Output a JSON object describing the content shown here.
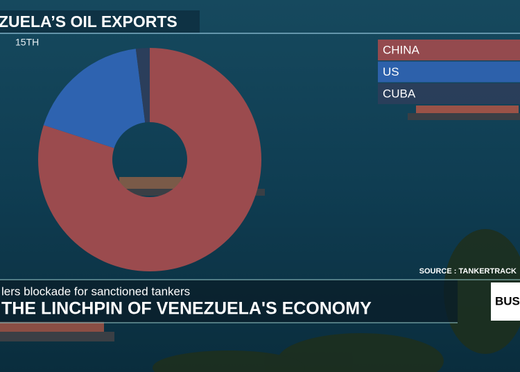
{
  "chart_data": {
    "type": "pie",
    "title": "ZUELA’S OIL EXPORTS",
    "subtitle": "15TH",
    "categories": [
      "CHINA",
      "US",
      "CUBA"
    ],
    "values": [
      80,
      18,
      2
    ],
    "colors": [
      "#9b4b4e",
      "#2e63b0",
      "#2b3e5b"
    ],
    "donut": true,
    "source": "SOURCE : TANKERTRACK"
  },
  "banner": {
    "headline": "lers blockade for sanctioned tankers",
    "title": "THE LINCHPIN OF VENEZUELA'S ECONOMY",
    "tag": "BUS"
  }
}
